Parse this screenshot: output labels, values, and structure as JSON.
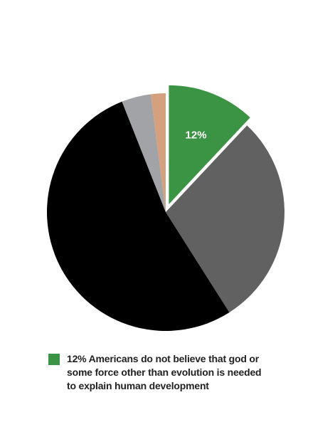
{
  "chart_data": {
    "type": "pie",
    "categories": [
      null,
      null,
      null,
      null,
      null
    ],
    "values": [
      12,
      29,
      53,
      4,
      2
    ],
    "value_labels": [
      "12%",
      null,
      null,
      null,
      null
    ],
    "colors": [
      "#3a9444",
      "#616161",
      "#000000",
      "#a2a3a7",
      "#d4a07e"
    ],
    "exploded": [
      true,
      false,
      false,
      false,
      false
    ],
    "legend": {
      "text": "12% Americans do not believe that god or some force other than evolution is needed to explain human development",
      "color": "#3a9444"
    }
  }
}
